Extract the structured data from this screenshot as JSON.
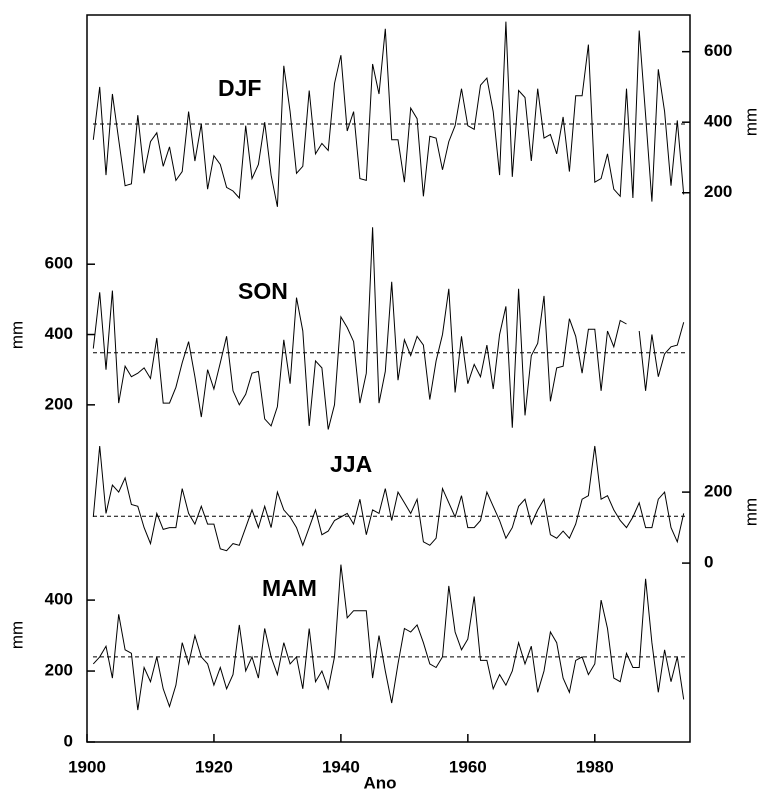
{
  "chart_data": {
    "type": "line",
    "xlabel": "Ano",
    "xlim": [
      1900,
      1995
    ],
    "xticks": [
      1900,
      1920,
      1940,
      1960,
      1980
    ],
    "x": [
      1901,
      1902,
      1903,
      1904,
      1905,
      1906,
      1907,
      1908,
      1909,
      1910,
      1911,
      1912,
      1913,
      1914,
      1915,
      1916,
      1917,
      1918,
      1919,
      1920,
      1921,
      1922,
      1923,
      1924,
      1925,
      1926,
      1927,
      1928,
      1929,
      1930,
      1931,
      1932,
      1933,
      1934,
      1935,
      1936,
      1937,
      1938,
      1939,
      1940,
      1941,
      1942,
      1943,
      1944,
      1945,
      1946,
      1947,
      1948,
      1949,
      1950,
      1951,
      1952,
      1953,
      1954,
      1955,
      1956,
      1957,
      1958,
      1959,
      1960,
      1961,
      1962,
      1963,
      1964,
      1965,
      1966,
      1967,
      1968,
      1969,
      1970,
      1971,
      1972,
      1973,
      1974,
      1975,
      1976,
      1977,
      1978,
      1979,
      1980,
      1981,
      1982,
      1983,
      1984,
      1985,
      1986,
      1987,
      1988,
      1989,
      1990,
      1991,
      1992,
      1993,
      1994
    ],
    "series": [
      {
        "name": "DJF",
        "color": "#000000",
        "ylabel": "mm",
        "side": "right",
        "ylim": [
          100,
          704
        ],
        "yticks": [
          200,
          400,
          600
        ],
        "reference": 395,
        "values": [
          350,
          500,
          250,
          480,
          350,
          220,
          225,
          420,
          255,
          345,
          370,
          275,
          330,
          235,
          260,
          430,
          290,
          395,
          210,
          305,
          280,
          215,
          205,
          185,
          390,
          240,
          280,
          400,
          250,
          160,
          560,
          430,
          255,
          275,
          490,
          310,
          340,
          320,
          510,
          590,
          375,
          430,
          240,
          235,
          565,
          480,
          665,
          350,
          350,
          230,
          440,
          410,
          190,
          360,
          355,
          265,
          345,
          390,
          495,
          390,
          380,
          505,
          525,
          430,
          250,
          685,
          245,
          490,
          470,
          290,
          495,
          355,
          365,
          310,
          415,
          260,
          475,
          475,
          620,
          230,
          240,
          310,
          210,
          190,
          495,
          185,
          660,
          420,
          175,
          550,
          430,
          220,
          405,
          195
        ]
      },
      {
        "name": "SON",
        "color": "#000000",
        "ylabel": "mm",
        "side": "left",
        "ylim": [
          100,
          703
        ],
        "yticks": [
          200,
          400,
          600
        ],
        "reference": 348,
        "values": [
          360,
          520,
          300,
          525,
          205,
          310,
          280,
          290,
          305,
          275,
          390,
          205,
          205,
          250,
          320,
          380,
          280,
          165,
          300,
          245,
          320,
          395,
          240,
          200,
          230,
          290,
          295,
          160,
          140,
          195,
          385,
          260,
          505,
          410,
          140,
          325,
          305,
          130,
          200,
          450,
          420,
          380,
          205,
          290,
          705,
          205,
          295,
          550,
          270,
          385,
          340,
          395,
          370,
          215,
          325,
          400,
          530,
          235,
          395,
          260,
          315,
          280,
          370,
          245,
          400,
          480,
          135,
          530,
          170,
          340,
          375,
          510,
          210,
          305,
          310,
          445,
          395,
          290,
          415,
          415,
          240,
          410,
          365,
          440,
          430,
          null,
          410,
          240,
          400,
          280,
          345,
          365,
          370,
          435
        ]
      },
      {
        "name": "JJA",
        "color": "#000000",
        "ylabel": "mm",
        "side": "right",
        "ylim": [
          -104,
          375
        ],
        "yticks": [
          0,
          200
        ],
        "reference": 132,
        "values": [
          130,
          330,
          140,
          220,
          200,
          240,
          165,
          160,
          100,
          55,
          140,
          95,
          100,
          100,
          210,
          140,
          110,
          160,
          110,
          110,
          40,
          35,
          55,
          50,
          100,
          150,
          100,
          160,
          100,
          200,
          150,
          130,
          100,
          50,
          100,
          150,
          80,
          90,
          120,
          130,
          140,
          110,
          180,
          80,
          150,
          140,
          210,
          120,
          200,
          170,
          140,
          180,
          60,
          50,
          70,
          210,
          170,
          130,
          190,
          100,
          100,
          120,
          200,
          160,
          120,
          70,
          100,
          160,
          180,
          110,
          150,
          180,
          80,
          70,
          90,
          70,
          110,
          180,
          190,
          330,
          180,
          190,
          150,
          120,
          100,
          130,
          170,
          100,
          100,
          180,
          200,
          100,
          60,
          140
        ]
      },
      {
        "name": "MAM",
        "color": "#000000",
        "ylabel": "mm",
        "side": "left",
        "ylim": [
          0,
          513
        ],
        "yticks": [
          0,
          200,
          400
        ],
        "reference": 240,
        "values": [
          220,
          240,
          270,
          180,
          360,
          260,
          250,
          90,
          210,
          170,
          240,
          150,
          100,
          160,
          280,
          220,
          300,
          240,
          220,
          160,
          210,
          150,
          190,
          330,
          200,
          240,
          180,
          320,
          240,
          190,
          280,
          220,
          240,
          150,
          320,
          170,
          200,
          150,
          240,
          500,
          350,
          370,
          370,
          370,
          180,
          300,
          200,
          110,
          220,
          320,
          310,
          330,
          280,
          220,
          210,
          240,
          440,
          310,
          260,
          290,
          410,
          230,
          230,
          150,
          190,
          160,
          200,
          280,
          220,
          270,
          140,
          200,
          310,
          280,
          180,
          140,
          230,
          240,
          190,
          220,
          400,
          320,
          180,
          170,
          250,
          210,
          210,
          460,
          280,
          140,
          260,
          170,
          240,
          120
        ]
      }
    ]
  }
}
